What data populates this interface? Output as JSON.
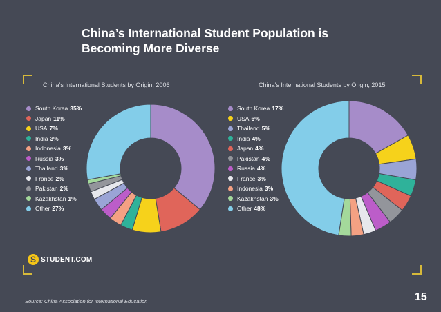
{
  "title": "China’s International Student Population is Becoming More Diverse",
  "source": "Source: China Association for International Education",
  "page_number": "15",
  "brand": {
    "name": "STUDENT.COM",
    "icon": "student-com-logo-icon",
    "icon_glyph": "S"
  },
  "chart_data": [
    {
      "type": "pie",
      "title": "China’s International Students by Origin, 2006",
      "categories": [
        "South Korea",
        "Japan",
        "USA",
        "India",
        "Indonesia",
        "Russia",
        "Thailand",
        "France",
        "Pakistan",
        "Kazakhstan",
        "Other"
      ],
      "values": [
        35,
        11,
        7,
        3,
        3,
        3,
        3,
        2,
        2,
        1,
        27
      ],
      "labels": [
        "35%",
        "11%",
        "7%",
        "3%",
        "3%",
        "3%",
        "3%",
        "2%",
        "2%",
        "1%",
        "27%"
      ],
      "colors": [
        "#a68cc9",
        "#e0655a",
        "#f6d21b",
        "#2fb29a",
        "#f4a183",
        "#bc5dc9",
        "#9aa4d6",
        "#e7e8ed",
        "#93959b",
        "#a4d99b",
        "#83cde9"
      ],
      "donut": true
    },
    {
      "type": "pie",
      "title": "China’s International Students by Origin, 2015",
      "categories": [
        "South Korea",
        "USA",
        "Thailand",
        "India",
        "Japan",
        "Pakistan",
        "Russia",
        "France",
        "Indonesia",
        "Kazakhstan",
        "Other"
      ],
      "values": [
        17,
        6,
        5,
        4,
        4,
        4,
        4,
        3,
        3,
        3,
        48
      ],
      "labels": [
        "17%",
        "6%",
        "5%",
        "4%",
        "4%",
        "4%",
        "4%",
        "3%",
        "3%",
        "3%",
        "48%"
      ],
      "colors": [
        "#a68cc9",
        "#f6d21b",
        "#9aa4d6",
        "#2fb29a",
        "#e0655a",
        "#93959b",
        "#bc5dc9",
        "#e7e8ed",
        "#f4a183",
        "#a4d99b",
        "#83cde9"
      ],
      "donut": true
    }
  ]
}
